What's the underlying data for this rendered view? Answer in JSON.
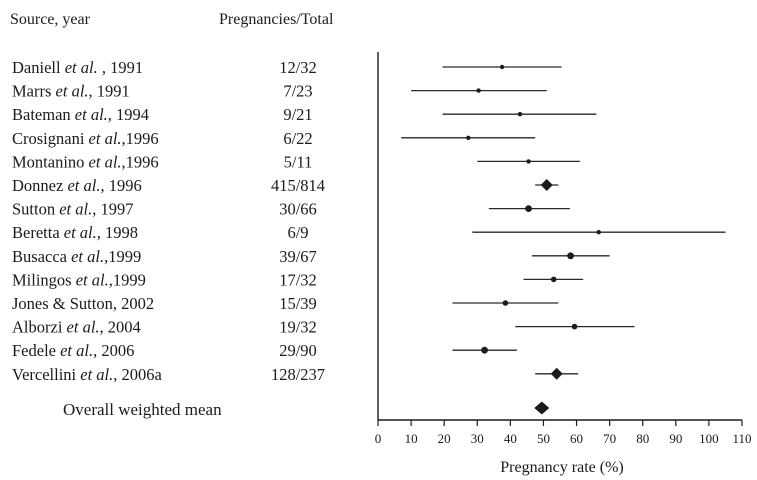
{
  "chart_data": {
    "type": "forest",
    "header_source": "Source, year",
    "header_counts": "Pregnancies/Total",
    "xlabel": "Pregnancy rate (%)",
    "xlim": [
      0,
      110
    ],
    "xticks": [
      0,
      10,
      20,
      30,
      40,
      50,
      60,
      70,
      80,
      90,
      100,
      110
    ],
    "grid": false,
    "studies": [
      {
        "pre": "Daniell ",
        "etal": "et al.",
        "post": " , 1991",
        "count": "12/32",
        "estimate": 37.5,
        "ci": [
          19.5,
          55.5
        ],
        "marker": "small"
      },
      {
        "pre": "Marrs ",
        "etal": "et al.",
        "post": ", 1991",
        "count": "7/23",
        "estimate": 30.4,
        "ci": [
          10,
          51
        ],
        "marker": "small"
      },
      {
        "pre": "Bateman ",
        "etal": "et al.",
        "post": ", 1994",
        "count": "9/21",
        "estimate": 42.9,
        "ci": [
          19.5,
          66
        ],
        "marker": "small"
      },
      {
        "pre": "Crosignani ",
        "etal": "et al.",
        "post": ",1996",
        "count": "6/22",
        "estimate": 27.3,
        "ci": [
          7,
          47.5
        ],
        "marker": "small"
      },
      {
        "pre": "Montanino ",
        "etal": "et al.",
        "post": ",1996",
        "count": "5/11",
        "estimate": 45.5,
        "ci": [
          30,
          61
        ],
        "marker": "small"
      },
      {
        "pre": "Donnez ",
        "etal": "et al.",
        "post": ", 1996",
        "count": "415/814",
        "estimate": 51,
        "ci": [
          47.5,
          54.5
        ],
        "marker": "diamond"
      },
      {
        "pre": "Sutton  ",
        "etal": "et al.",
        "post": ", 1997",
        "count": "30/66",
        "estimate": 45.5,
        "ci": [
          33.5,
          58
        ],
        "marker": "large"
      },
      {
        "pre": "Beretta ",
        "etal": "et al.",
        "post": ", 1998",
        "count": "6/9",
        "estimate": 66.7,
        "ci": [
          28.5,
          105
        ],
        "marker": "small"
      },
      {
        "pre": "Busacca ",
        "etal": "et al.",
        "post": ",1999",
        "count": "39/67",
        "estimate": 58.2,
        "ci": [
          46.5,
          70
        ],
        "marker": "large"
      },
      {
        "pre": "Milingos ",
        "etal": "et al.",
        "post": ",1999",
        "count": "17/32",
        "estimate": 53.1,
        "ci": [
          44,
          62
        ],
        "marker": "medium"
      },
      {
        "pre": "Jones & Sutton, 2002",
        "etal": "",
        "post": "",
        "count": "15/39",
        "estimate": 38.5,
        "ci": [
          22.5,
          54.5
        ],
        "marker": "medium"
      },
      {
        "pre": "Alborzi ",
        "etal": "et al.",
        "post": ", 2004",
        "count": "19/32",
        "estimate": 59.4,
        "ci": [
          41.5,
          77.5
        ],
        "marker": "medium"
      },
      {
        "pre": "Fedele ",
        "etal": "et al.",
        "post": ", 2006",
        "count": "29/90",
        "estimate": 32.2,
        "ci": [
          22.5,
          42
        ],
        "marker": "large"
      },
      {
        "pre": "Vercellini ",
        "etal": "et al.",
        "post": ", 2006a",
        "count": "128/237",
        "estimate": 54,
        "ci": [
          47.5,
          60.5
        ],
        "marker": "diamond"
      }
    ],
    "overall": {
      "label": "Overall weighted mean",
      "estimate": 49.5,
      "ci": [
        47.5,
        51.5
      ]
    },
    "colors": {
      "ink": "#1b1b1b",
      "ci_line": "#2a2a2a"
    }
  }
}
